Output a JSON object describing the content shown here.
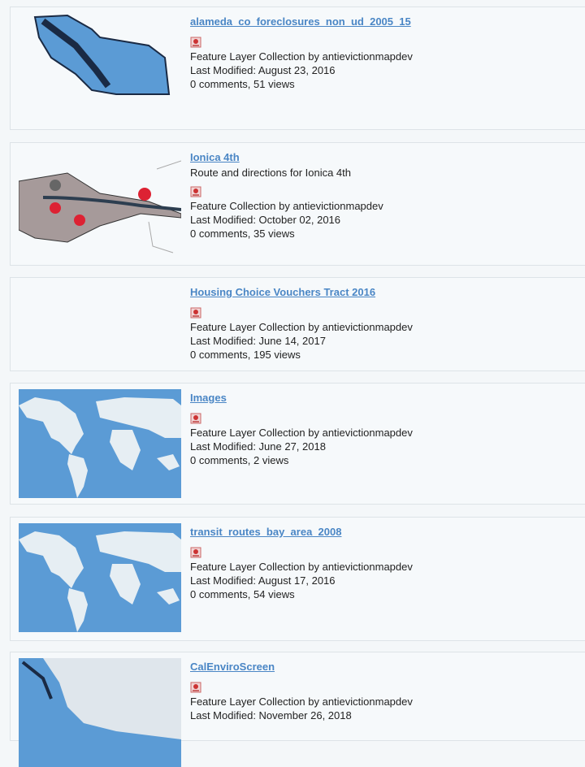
{
  "items": [
    {
      "title": "alameda_co_foreclosures_non_ud_2005_15",
      "type_line": "Feature Layer Collection by antievictionmapdev",
      "modified": "Last Modified: August 23, 2016",
      "stats": "0 comments, 51 views"
    },
    {
      "title": "Ionica 4th",
      "description": "Route and directions for Ionica 4th",
      "type_line": "Feature Collection by antievictionmapdev",
      "modified": "Last Modified: October 02, 2016",
      "stats": "0 comments, 35 views"
    },
    {
      "title": "Housing Choice Vouchers Tract 2016",
      "type_line": "Feature Layer Collection by antievictionmapdev",
      "modified": "Last Modified: June 14, 2017",
      "stats": "0 comments, 195 views"
    },
    {
      "title": "Images",
      "type_line": "Feature Layer Collection by antievictionmapdev",
      "modified": "Last Modified: June 27, 2018",
      "stats": "0 comments, 2 views"
    },
    {
      "title": "transit_routes_bay_area_2008",
      "type_line": "Feature Layer Collection by antievictionmapdev",
      "modified": "Last Modified: August 17, 2016",
      "stats": "0 comments, 54 views"
    },
    {
      "title": "CalEnviroScreen",
      "type_line": "Feature Layer Collection by antievictionmapdev",
      "modified": "Last Modified: November 26, 2018"
    }
  ]
}
